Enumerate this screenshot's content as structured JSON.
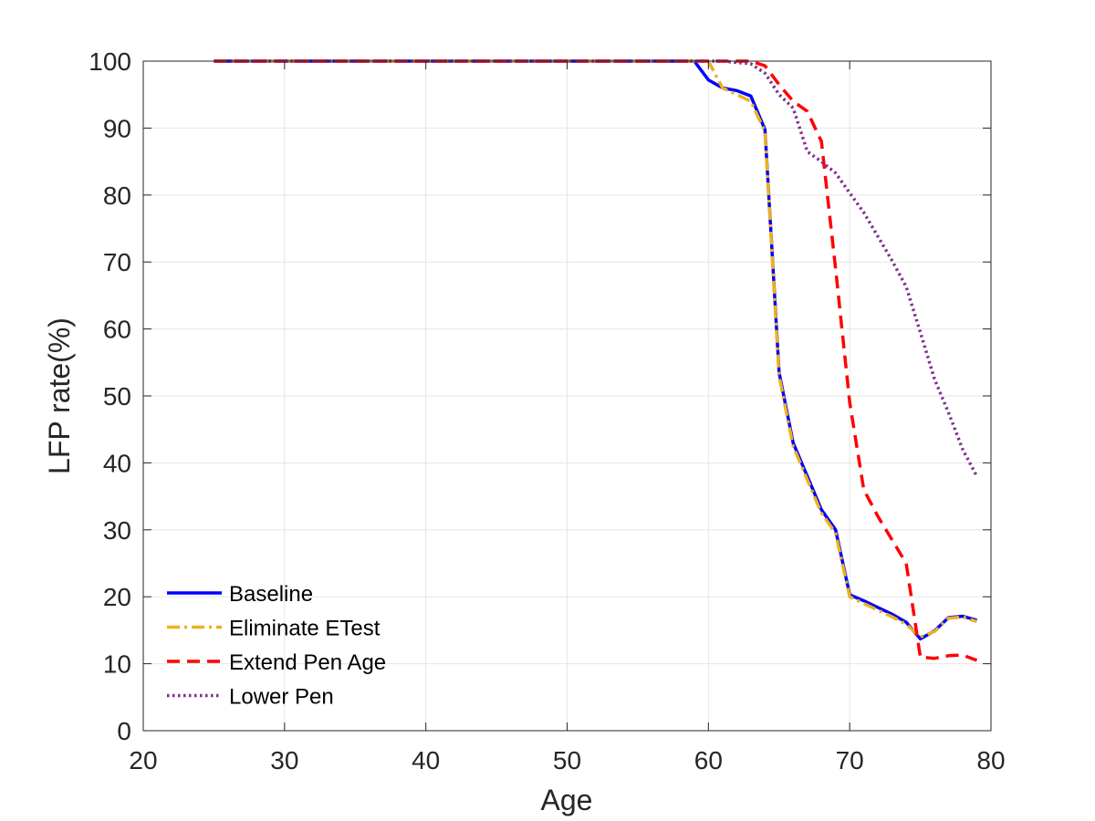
{
  "chart_data": {
    "type": "line",
    "title": "",
    "xlabel": "Age",
    "ylabel": "LFP rate(%)",
    "xlim": [
      20,
      80
    ],
    "ylim": [
      0,
      100
    ],
    "xticks": [
      20,
      30,
      40,
      50,
      60,
      70,
      80
    ],
    "yticks": [
      0,
      10,
      20,
      30,
      40,
      50,
      60,
      70,
      80,
      90,
      100
    ],
    "grid": true,
    "legend": "bottom-left",
    "series": [
      {
        "name": "Baseline",
        "color": "#0000ff",
        "style": "solid",
        "x": [
          25,
          59,
          60,
          61,
          62,
          63,
          64,
          65,
          66,
          67,
          68,
          69,
          70,
          71,
          72,
          73,
          74,
          75,
          76,
          77,
          78,
          79
        ],
        "y": [
          100,
          100,
          97.2,
          96,
          95.6,
          94.8,
          89.8,
          53.5,
          43,
          38,
          33,
          30,
          20.3,
          19.4,
          18.4,
          17.4,
          16.2,
          13.7,
          14.9,
          16.9,
          17.1,
          16.5
        ]
      },
      {
        "name": "Eliminate ETest",
        "color": "#edb120",
        "style": "dashdot",
        "x": [
          25,
          60,
          61,
          62,
          63,
          64,
          65,
          66,
          67,
          68,
          69,
          70,
          71,
          72,
          73,
          74,
          75,
          76,
          77,
          78,
          79
        ],
        "y": [
          100,
          100,
          96,
          95,
          94,
          89.5,
          53,
          42.5,
          37.5,
          32.5,
          29.5,
          20,
          19,
          18,
          17,
          15.9,
          14,
          14.8,
          16.8,
          17,
          16.3
        ]
      },
      {
        "name": "Extend Pen Age",
        "color": "#ff0000",
        "style": "dashed",
        "x": [
          25,
          63,
          64,
          65,
          66,
          67,
          68,
          69,
          70,
          71,
          72,
          73,
          74,
          75,
          76,
          77,
          78,
          79
        ],
        "y": [
          100,
          100,
          99.3,
          96.5,
          94,
          92.5,
          88,
          69,
          49,
          36,
          32,
          28.5,
          25,
          11,
          10.8,
          11.2,
          11.3,
          10.5
        ]
      },
      {
        "name": "Lower Pen",
        "color": "#7e2f8e",
        "style": "dotted",
        "x": [
          25,
          61,
          62,
          63,
          64,
          65,
          66,
          67,
          68,
          69,
          70,
          71,
          72,
          73,
          74,
          75,
          76,
          77,
          78,
          79
        ],
        "y": [
          100,
          100,
          99.8,
          99.6,
          98.2,
          95,
          93,
          86.5,
          85,
          83.3,
          80.3,
          77.4,
          73.8,
          70.2,
          66.3,
          59.5,
          52.5,
          47.5,
          42,
          38
        ]
      }
    ]
  }
}
